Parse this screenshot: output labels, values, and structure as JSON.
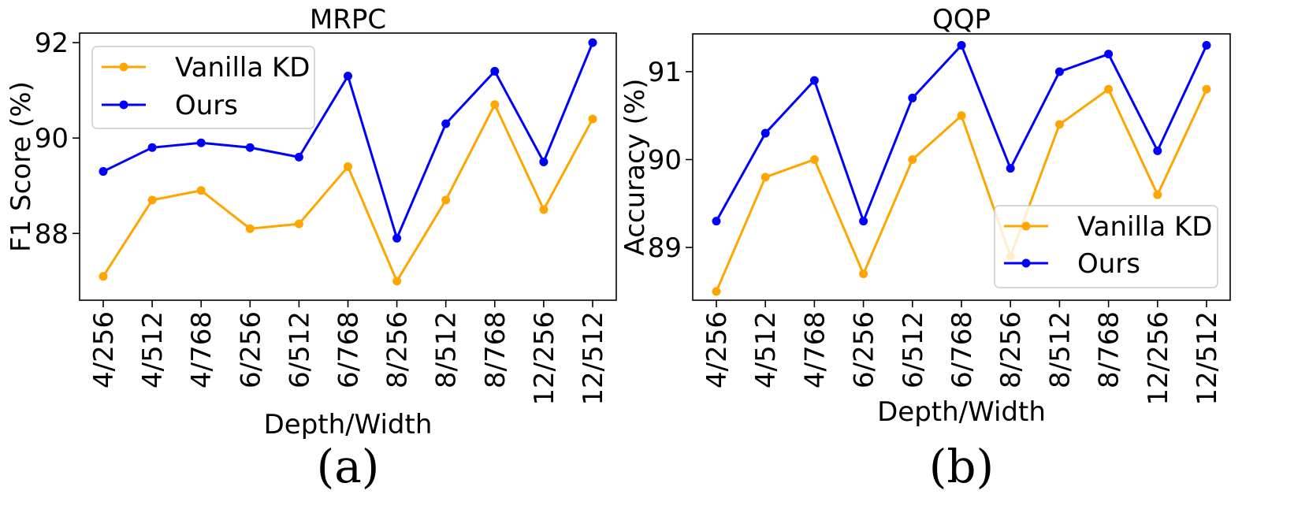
{
  "chart_data": [
    {
      "type": "line",
      "title": "MRPC",
      "xlabel": "Depth/Width",
      "ylabel": "F1 Score (%)",
      "panel_label": "(a)",
      "categories": [
        "4/256",
        "4/512",
        "4/768",
        "6/256",
        "6/512",
        "6/768",
        "8/256",
        "8/512",
        "8/768",
        "12/256",
        "12/512"
      ],
      "ylim": [
        86.6,
        92.2
      ],
      "yticks": [
        88,
        90,
        92
      ],
      "legend_position": "upper left",
      "series": [
        {
          "name": "Vanilla KD",
          "color": "#FFA500",
          "values": [
            87.1,
            88.7,
            88.9,
            88.1,
            88.2,
            89.4,
            87.0,
            88.7,
            90.7,
            88.5,
            90.4
          ]
        },
        {
          "name": "Ours",
          "color": "#0000FF",
          "values": [
            89.3,
            89.8,
            89.9,
            89.8,
            89.6,
            91.3,
            87.9,
            90.3,
            91.4,
            89.5,
            92.0
          ]
        }
      ]
    },
    {
      "type": "line",
      "title": "QQP",
      "xlabel": "Depth/Width",
      "ylabel": "Accuracy (%)",
      "panel_label": "(b)",
      "categories": [
        "4/256",
        "4/512",
        "4/768",
        "6/256",
        "6/512",
        "6/768",
        "8/256",
        "8/512",
        "8/768",
        "12/256",
        "12/512"
      ],
      "ylim": [
        88.4,
        91.43
      ],
      "yticks": [
        89,
        90,
        91
      ],
      "legend_position": "lower right",
      "series": [
        {
          "name": "Vanilla KD",
          "color": "#FFA500",
          "values": [
            88.5,
            89.8,
            90.0,
            88.7,
            90.0,
            90.5,
            88.9,
            90.4,
            90.8,
            89.6,
            90.8
          ]
        },
        {
          "name": "Ours",
          "color": "#0000FF",
          "values": [
            89.3,
            90.3,
            90.9,
            89.3,
            90.7,
            91.3,
            89.9,
            91.0,
            91.2,
            90.1,
            91.3
          ]
        }
      ]
    }
  ]
}
